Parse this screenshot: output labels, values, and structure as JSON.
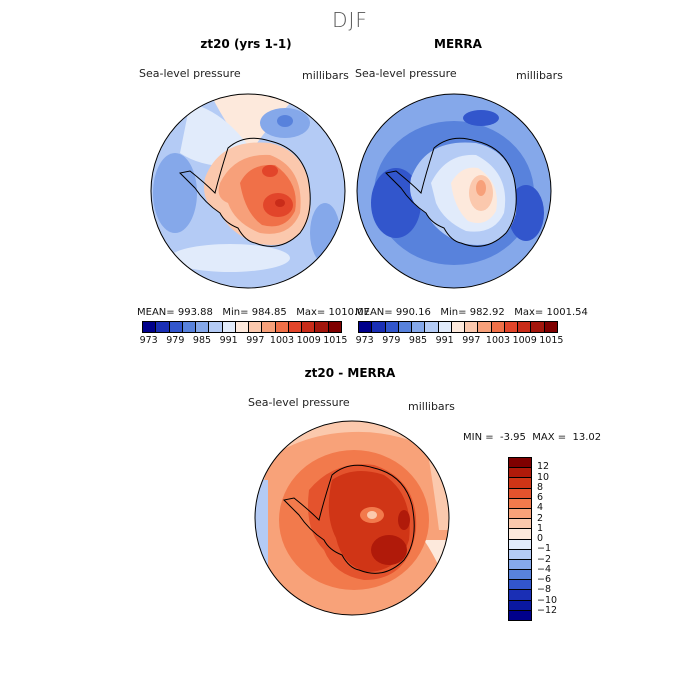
{
  "title": "DJF",
  "panels": {
    "left": {
      "title": "zt20 (yrs 1-1)",
      "field_label": "Sea-level pressure",
      "units": "millibars",
      "stats": {
        "mean_label": "MEAN=",
        "mean": "993.88",
        "min_label": "Min=",
        "min": "984.85",
        "max_label": "Max=",
        "max": "1010.07"
      }
    },
    "right": {
      "title": "MERRA",
      "field_label": "Sea-level pressure",
      "units": "millibars",
      "stats": {
        "mean_label": "MEAN=",
        "mean": "990.16",
        "min_label": "Min=",
        "min": "982.92",
        "max_label": "Max=",
        "max": "1001.54"
      }
    },
    "diff": {
      "title": "zt20 - MERRA",
      "field_label": "Sea-level pressure",
      "units": "millibars",
      "stats": {
        "min_label": "MIN =",
        "min": "-3.95",
        "max_label": "MAX =",
        "max": "13.02"
      }
    }
  },
  "colorbar_abs": {
    "colors": [
      "#00008b",
      "#1a2fb5",
      "#3256cc",
      "#5882dc",
      "#85a8ea",
      "#b4cbf5",
      "#e1ebfb",
      "#fde9dc",
      "#fbc8ad",
      "#f7a07a",
      "#f07048",
      "#e2452a",
      "#c92c19",
      "#a3160c",
      "#7f0000"
    ],
    "ticks": [
      "973",
      "979",
      "985",
      "991",
      "997",
      "1003",
      "1009",
      "1015"
    ]
  },
  "colorbar_diff": {
    "colors": [
      "#7f0000",
      "#b01a0a",
      "#d03516",
      "#e4532d",
      "#f27a4c",
      "#f8a279",
      "#fbc9ad",
      "#fde9dc",
      "#e1ebfb",
      "#b4cbf5",
      "#85a8ea",
      "#5882dc",
      "#3256cc",
      "#1a2fb5",
      "#0a18a0",
      "#00008b"
    ],
    "ticks": [
      "12",
      "10",
      "8",
      "6",
      "4",
      "2",
      "1",
      "0",
      "−1",
      "−2",
      "−4",
      "−6",
      "−8",
      "−10",
      "−12"
    ]
  }
}
